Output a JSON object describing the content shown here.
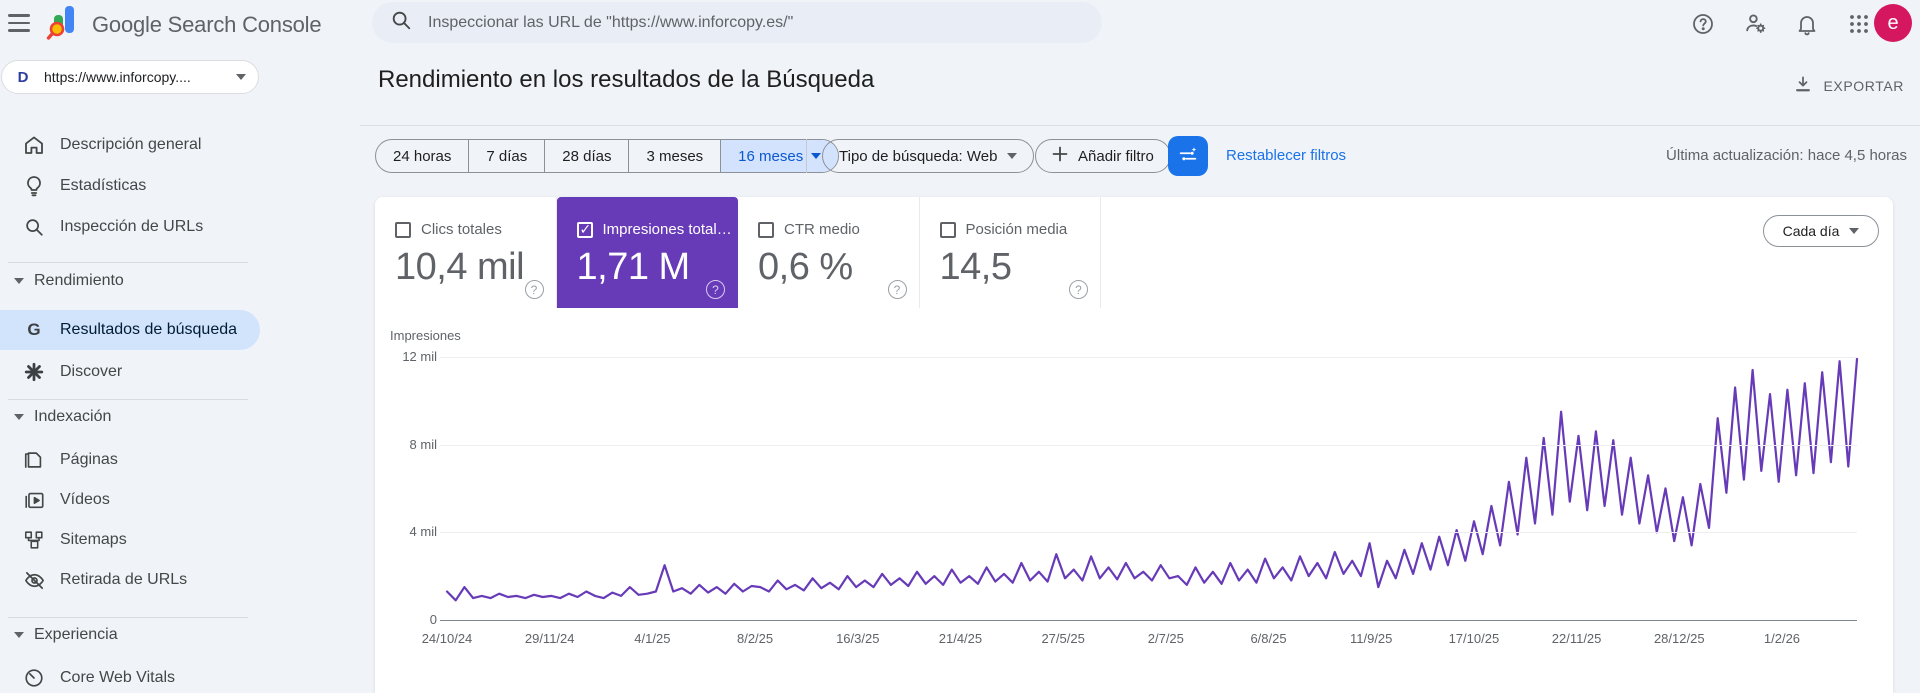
{
  "colors": {
    "accent_purple": "#673ab7",
    "selected_blue_bg": "#d3e3fd",
    "selected_blue_text": "#0b57d0",
    "link_blue": "#1a73e8",
    "avatar_pink": "#d5175f"
  },
  "topbar": {
    "product_name": "Google Search Console",
    "search_placeholder": "Inspeccionar las URL de \"https://www.inforcopy.es/\"",
    "avatar_letter": "e"
  },
  "property_selector": {
    "label": "https://www.inforcopy....",
    "favicon_letter": "D"
  },
  "sidebar": {
    "overview": "Descripción general",
    "insights": "Estadísticas",
    "inspection": "Inspección de URLs",
    "performance_group": "Rendimiento",
    "search_results": "Resultados de búsqueda",
    "discover": "Discover",
    "indexing_group": "Indexación",
    "pages": "Páginas",
    "videos": "Vídeos",
    "sitemaps": "Sitemaps",
    "removals": "Retirada de URLs",
    "experience_group": "Experiencia",
    "cwv": "Core Web Vitals"
  },
  "header": {
    "title": "Rendimiento en los resultados de la Búsqueda",
    "export_label": "EXPORTAR"
  },
  "filters": {
    "date_ranges": [
      "24 horas",
      "7 días",
      "28 días",
      "3 meses",
      "16 meses"
    ],
    "selected_range": "16 meses",
    "search_type": "Tipo de búsqueda: Web",
    "add_filter": "Añadir filtro",
    "reset": "Restablecer filtros",
    "last_updated": "Última actualización: hace 4,5 horas"
  },
  "metrics": {
    "cards": [
      {
        "label": "Clics totales",
        "value": "10,4 mil",
        "checked": false
      },
      {
        "label": "Impresiones total…",
        "value": "1,71 M",
        "checked": true
      },
      {
        "label": "CTR medio",
        "value": "0,6 %",
        "checked": false
      },
      {
        "label": "Posición media",
        "value": "14,5",
        "checked": false
      }
    ],
    "granularity": "Cada día"
  },
  "chart_data": {
    "type": "line",
    "series_name": "Impresiones totales",
    "ylabel": "Impresiones",
    "unit_note": "values in thousands (mil), sampled ~every 3 days from 24/10/24 to ~20/2/26",
    "ylim": [
      0,
      12.77
    ],
    "yticks": [
      {
        "label": "12 mil",
        "value": 12
      },
      {
        "label": "8 mil",
        "value": 8
      },
      {
        "label": "4 mil",
        "value": 4
      },
      {
        "label": "0",
        "value": 0
      }
    ],
    "xticks": [
      "24/10/24",
      "29/11/24",
      "4/1/25",
      "8/2/25",
      "16/3/25",
      "21/4/25",
      "27/5/25",
      "2/7/25",
      "6/8/25",
      "11/9/25",
      "17/10/25",
      "22/11/25",
      "28/12/25",
      "1/2/26"
    ],
    "line_color": "#673ab7",
    "grid": true,
    "legend": "none",
    "values": [
      1.3,
      0.9,
      1.5,
      1.0,
      1.1,
      1.0,
      1.2,
      1.05,
      1.1,
      1.0,
      1.15,
      1.05,
      1.1,
      1.0,
      1.2,
      1.05,
      1.3,
      1.1,
      1.0,
      1.25,
      1.1,
      1.5,
      1.15,
      1.2,
      1.3,
      2.5,
      1.3,
      1.45,
      1.2,
      1.6,
      1.25,
      1.5,
      1.2,
      1.65,
      1.3,
      1.55,
      1.5,
      1.3,
      1.8,
      1.4,
      1.6,
      1.35,
      1.9,
      1.45,
      1.7,
      1.4,
      2.0,
      1.5,
      1.8,
      1.5,
      2.1,
      1.6,
      1.9,
      1.55,
      2.2,
      1.65,
      2.0,
      1.6,
      2.3,
      1.7,
      2.0,
      1.65,
      2.4,
      1.75,
      2.1,
      1.7,
      2.6,
      1.8,
      2.2,
      1.75,
      3.0,
      1.9,
      2.3,
      1.8,
      2.9,
      1.9,
      2.4,
      1.85,
      2.6,
      1.9,
      2.2,
      1.8,
      2.5,
      1.9,
      2.0,
      1.6,
      2.4,
      1.7,
      2.2,
      1.65,
      2.6,
      1.8,
      2.3,
      1.7,
      2.8,
      1.9,
      2.4,
      1.8,
      2.9,
      2.0,
      2.6,
      1.9,
      3.1,
      2.1,
      2.7,
      2.0,
      3.5,
      1.5,
      2.7,
      1.9,
      3.2,
      2.1,
      3.5,
      2.3,
      3.8,
      2.5,
      4.1,
      2.7,
      4.5,
      3.0,
      5.2,
      3.4,
      6.3,
      3.9,
      7.4,
      4.4,
      8.3,
      4.8,
      9.5,
      5.4,
      8.4,
      5.0,
      8.6,
      5.2,
      8.2,
      4.8,
      7.4,
      4.4,
      6.6,
      4.0,
      6.0,
      3.6,
      5.6,
      3.4,
      6.2,
      4.2,
      9.2,
      5.8,
      10.6,
      6.4,
      11.4,
      6.8,
      10.3,
      6.3,
      10.5,
      6.6,
      10.8,
      6.7,
      11.3,
      7.2,
      11.8,
      7.0,
      11.9
    ]
  }
}
